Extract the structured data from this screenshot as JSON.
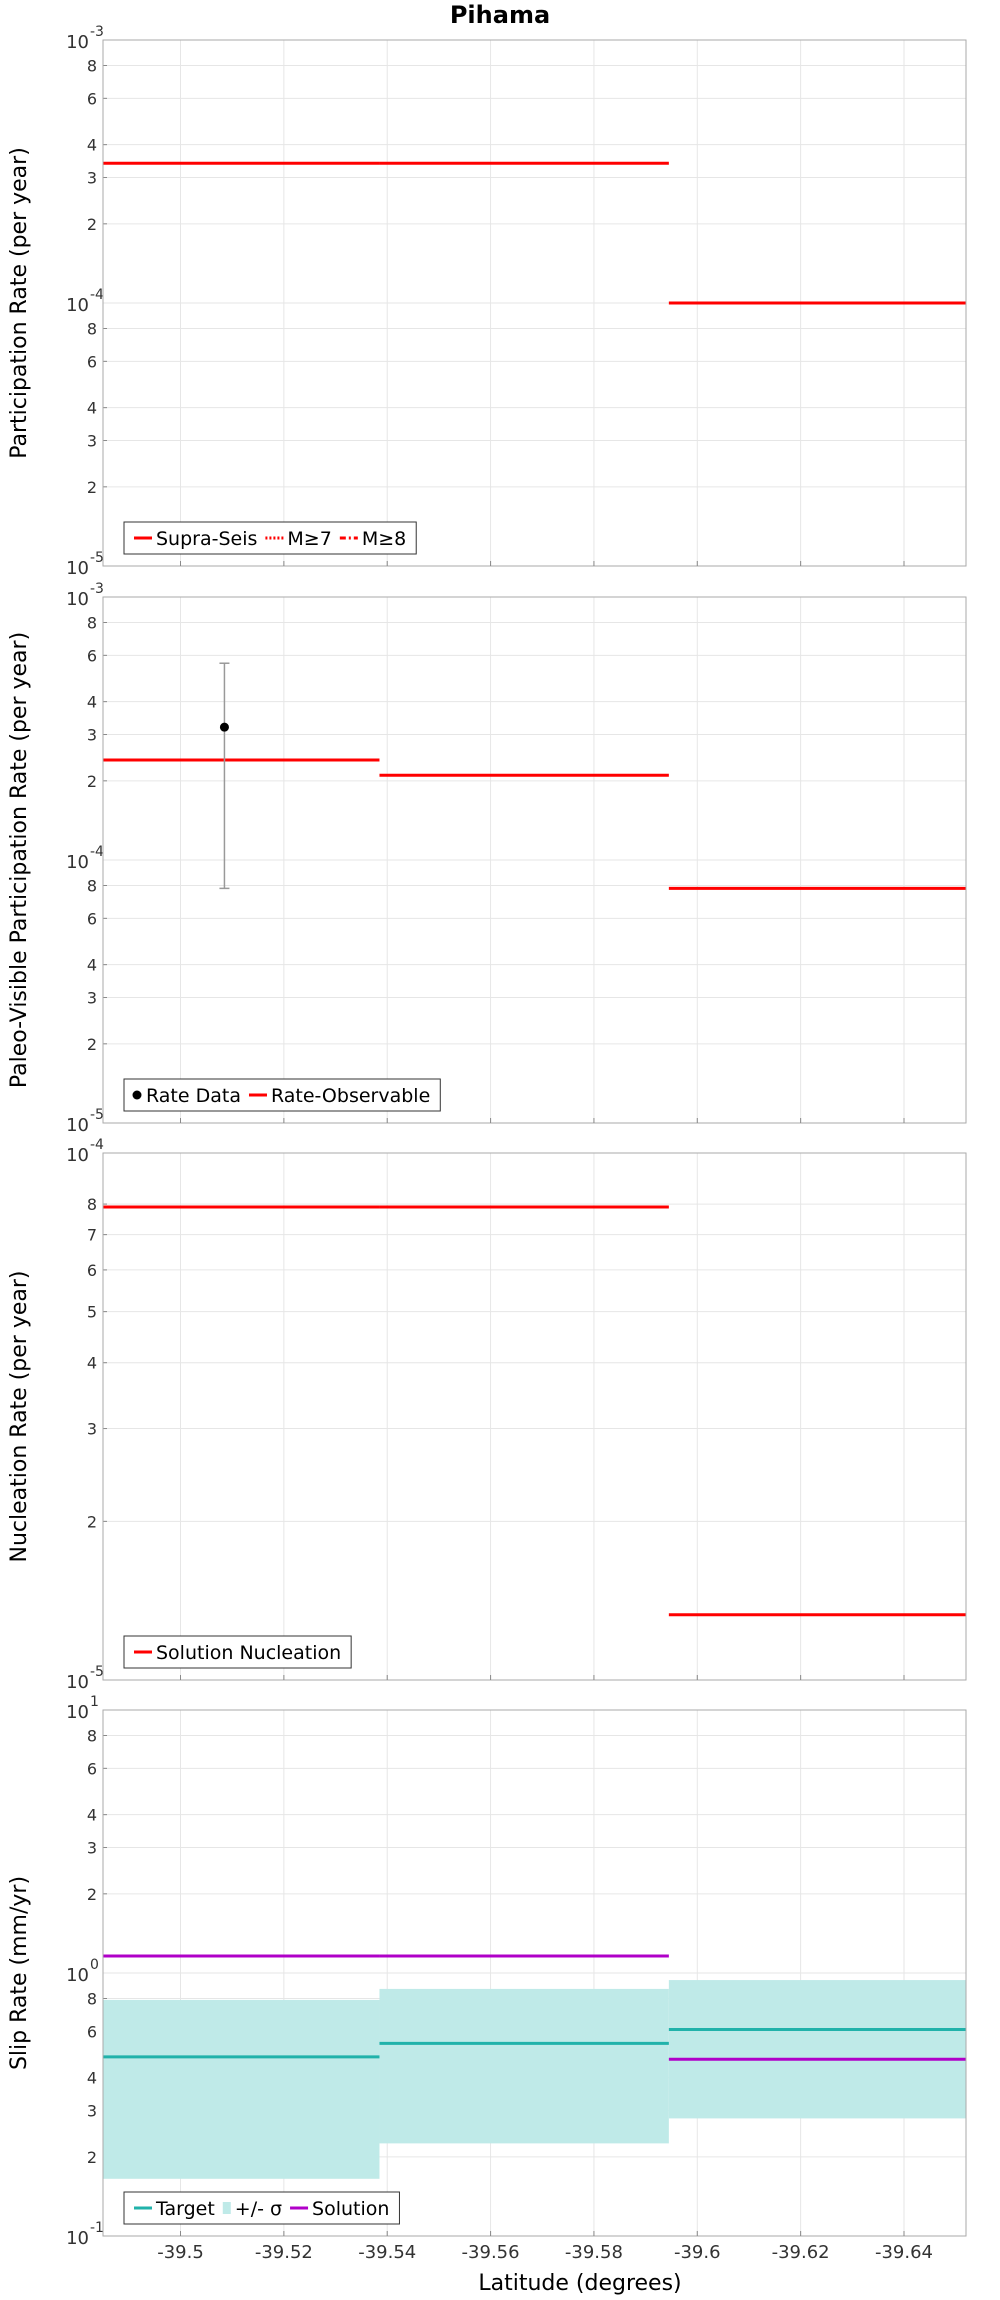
{
  "title": "Pihama",
  "xlabel": "Latitude (degrees)",
  "xlim": [
    -39.485,
    -39.652
  ],
  "xticks": [
    -39.5,
    -39.52,
    -39.54,
    -39.56,
    -39.58,
    -39.6,
    -39.62,
    -39.64
  ],
  "colors": {
    "red": "#ff0000",
    "teal": "#20b2aa",
    "magenta": "#b000c8",
    "band": "#bfeae8",
    "grid": "#e6e6e6",
    "axis": "#aaaaaa"
  },
  "chart_data": [
    {
      "type": "line",
      "ylabel": "Participation Rate (per year)",
      "yscale": "log",
      "ylim": [
        1e-05,
        0.001
      ],
      "decades": [
        {
          "base": "10",
          "exp": "-5",
          "value": 1e-05
        },
        {
          "base": "10",
          "exp": "-4",
          "value": 0.0001
        },
        {
          "base": "10",
          "exp": "-3",
          "value": 0.001
        }
      ],
      "minor_labels": [
        "2",
        "3",
        "4",
        "6",
        "8"
      ],
      "legend": {
        "entries": [
          {
            "label": "Supra-Seis",
            "style": "solid",
            "color": "#ff0000"
          },
          {
            "label": "M≥7",
            "style": "dotted",
            "color": "#ff0000"
          },
          {
            "label": "M≥8",
            "style": "dashdot",
            "color": "#ff0000"
          }
        ]
      },
      "series": [
        {
          "name": "Supra-Seis",
          "color": "#ff0000",
          "segments": [
            {
              "x0": -39.485,
              "x1": -39.5385,
              "y": 0.00034
            },
            {
              "x0": -39.5385,
              "x1": -39.5945,
              "y": 0.00034
            },
            {
              "x0": -39.5945,
              "x1": -39.652,
              "y": 0.0001
            }
          ]
        }
      ]
    },
    {
      "type": "line",
      "ylabel": "Paleo-Visible Participation Rate (per year)",
      "yscale": "log",
      "ylim": [
        1e-05,
        0.001
      ],
      "decades": [
        {
          "base": "10",
          "exp": "-5",
          "value": 1e-05
        },
        {
          "base": "10",
          "exp": "-4",
          "value": 0.0001
        },
        {
          "base": "10",
          "exp": "-3",
          "value": 0.001
        }
      ],
      "minor_labels": [
        "2",
        "3",
        "4",
        "6",
        "8"
      ],
      "legend": {
        "entries": [
          {
            "label": "Rate Data",
            "style": "point",
            "color": "#000000"
          },
          {
            "label": "Rate-Observable",
            "style": "solid",
            "color": "#ff0000"
          }
        ]
      },
      "points": [
        {
          "name": "Rate Data",
          "x": -39.5085,
          "y": 0.00032,
          "yerr_low": 7.8e-05,
          "yerr_high": 0.00056
        }
      ],
      "series": [
        {
          "name": "Rate-Observable",
          "color": "#ff0000",
          "segments": [
            {
              "x0": -39.485,
              "x1": -39.5385,
              "y": 0.00024
            },
            {
              "x0": -39.5385,
              "x1": -39.5945,
              "y": 0.00021
            },
            {
              "x0": -39.5945,
              "x1": -39.652,
              "y": 7.8e-05
            }
          ]
        }
      ]
    },
    {
      "type": "line",
      "ylabel": "Nucleation Rate (per year)",
      "yscale": "log",
      "ylim": [
        1e-05,
        0.0001
      ],
      "decades": [
        {
          "base": "10",
          "exp": "-5",
          "value": 1e-05
        },
        {
          "base": "10",
          "exp": "-4",
          "value": 0.0001
        }
      ],
      "minor_labels": [
        "2",
        "3",
        "4",
        "5",
        "6",
        "7",
        "8"
      ],
      "legend": {
        "entries": [
          {
            "label": "Solution Nucleation",
            "style": "solid",
            "color": "#ff0000"
          }
        ]
      },
      "series": [
        {
          "name": "Solution Nucleation",
          "color": "#ff0000",
          "segments": [
            {
              "x0": -39.485,
              "x1": -39.5385,
              "y": 7.9e-05
            },
            {
              "x0": -39.5385,
              "x1": -39.5945,
              "y": 7.9e-05
            },
            {
              "x0": -39.5945,
              "x1": -39.652,
              "y": 1.33e-05
            }
          ]
        }
      ]
    },
    {
      "type": "line",
      "ylabel": "Slip Rate (mm/yr)",
      "xlabel": "Latitude (degrees)",
      "yscale": "log",
      "ylim": [
        0.1,
        10
      ],
      "decades": [
        {
          "base": "10",
          "exp": "-1",
          "value": 0.1
        },
        {
          "base": "10",
          "exp": "0",
          "value": 1
        },
        {
          "base": "10",
          "exp": "1",
          "value": 10
        }
      ],
      "minor_labels": [
        "2",
        "3",
        "4",
        "6",
        "8"
      ],
      "legend": {
        "entries": [
          {
            "label": "Target",
            "style": "solid",
            "color": "#20b2aa"
          },
          {
            "label": "+/- σ",
            "style": "band",
            "color": "#bfeae8"
          },
          {
            "label": "Solution",
            "style": "solid",
            "color": "#b000c8"
          }
        ]
      },
      "bands": [
        {
          "name": "+/- σ",
          "color": "#bfeae8",
          "segments": [
            {
              "x0": -39.485,
              "x1": -39.5385,
              "y0": 0.165,
              "y1": 0.79
            },
            {
              "x0": -39.5385,
              "x1": -39.5945,
              "y0": 0.225,
              "y1": 0.87
            },
            {
              "x0": -39.5945,
              "x1": -39.652,
              "y0": 0.28,
              "y1": 0.94
            }
          ]
        }
      ],
      "series": [
        {
          "name": "Target",
          "color": "#20b2aa",
          "segments": [
            {
              "x0": -39.485,
              "x1": -39.5385,
              "y": 0.48
            },
            {
              "x0": -39.5385,
              "x1": -39.5945,
              "y": 0.54
            },
            {
              "x0": -39.5945,
              "x1": -39.652,
              "y": 0.61
            }
          ]
        },
        {
          "name": "Solution",
          "color": "#b000c8",
          "segments": [
            {
              "x0": -39.485,
              "x1": -39.5385,
              "y": 1.16
            },
            {
              "x0": -39.5385,
              "x1": -39.5945,
              "y": 1.16
            },
            {
              "x0": -39.5945,
              "x1": -39.652,
              "y": 0.47
            }
          ]
        }
      ]
    }
  ]
}
